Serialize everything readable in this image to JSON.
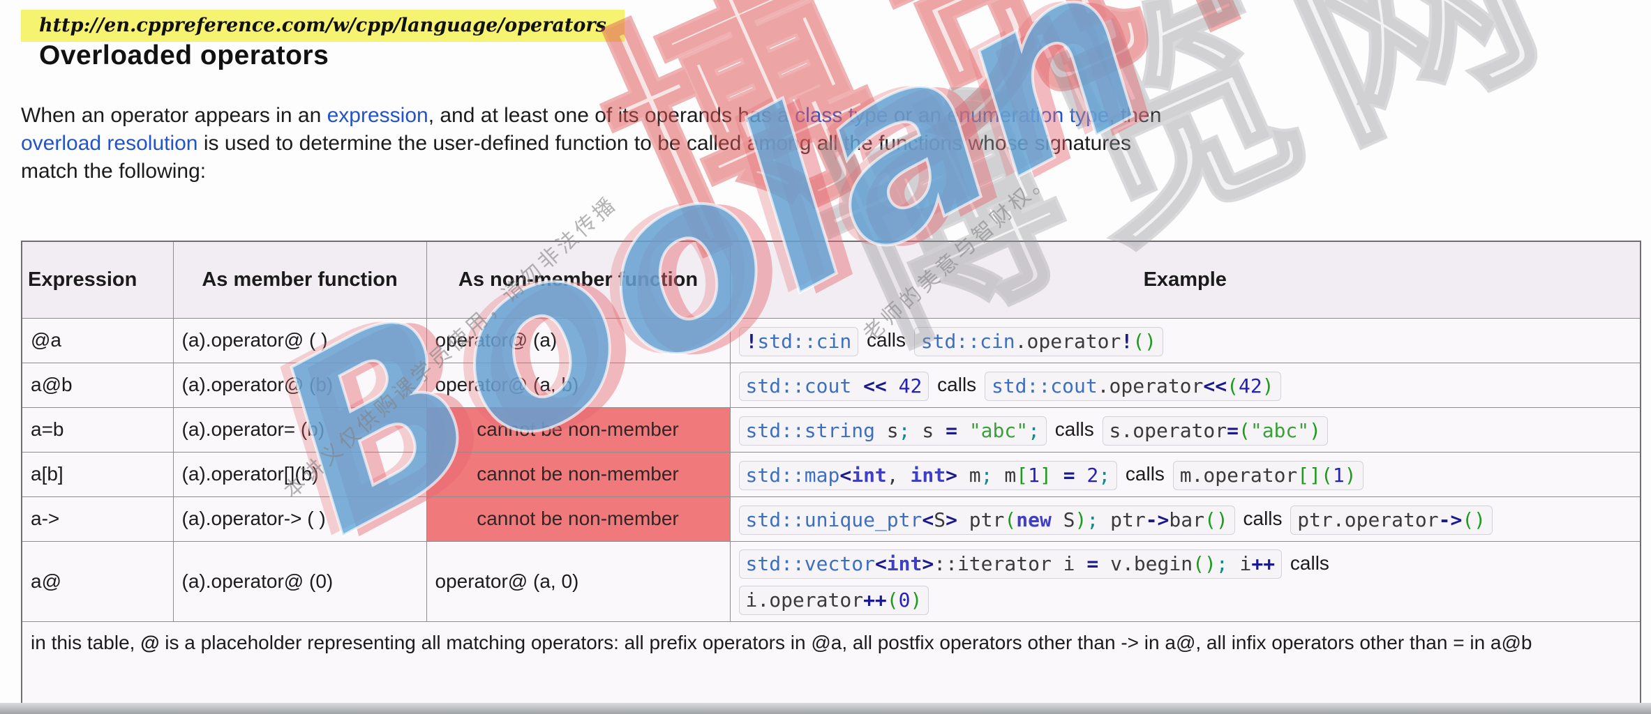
{
  "page": {
    "url": "http://en.cppreference.com/w/cpp/language/operators",
    "heading": "Overloaded operators",
    "intro_lines": [
      [
        {
          "t": "When an operator appears in an ",
          "link": false
        },
        {
          "t": "expression",
          "link": true
        },
        {
          "t": ", and at least one of its operands has a ",
          "link": false
        },
        {
          "t": "class type",
          "link": true
        },
        {
          "t": " or an ",
          "link": false
        },
        {
          "t": "enumeration type",
          "link": true
        },
        {
          "t": ", then",
          "link": false
        }
      ],
      [
        {
          "t": "overload resolution",
          "link": true
        },
        {
          "t": " is used to determine the user-defined function to be called among all the functions whose signatures",
          "link": false
        }
      ],
      [
        {
          "t": "match the following:",
          "link": false
        }
      ]
    ]
  },
  "table": {
    "headers": [
      "Expression",
      "As member function",
      "As non-member function",
      "Example"
    ],
    "rows": [
      {
        "expression": "@a",
        "member": "(a).operator@ ( )",
        "nonmember": "operator@ (a)",
        "forbidden": false,
        "tall": false,
        "example": [
          {
            "code": [
              [
                "op",
                "!"
              ],
              [
                "link",
                "std::cin"
              ]
            ]
          },
          {
            "text": " calls "
          },
          {
            "code": [
              [
                "link",
                "std::cin"
              ],
              [
                "plain",
                ".operator"
              ],
              [
                "op",
                "!"
              ],
              [
                "par",
                "()"
              ]
            ]
          }
        ]
      },
      {
        "expression": "a@b",
        "member": "(a).operator@ (b)",
        "nonmember": "operator@ (a, b)",
        "forbidden": false,
        "tall": false,
        "example": [
          {
            "code": [
              [
                "link",
                "std::cout"
              ],
              [
                "op",
                " << "
              ],
              [
                "num",
                "42"
              ]
            ]
          },
          {
            "text": " calls "
          },
          {
            "code": [
              [
                "link",
                "std::cout"
              ],
              [
                "plain",
                ".operator"
              ],
              [
                "op",
                "<<"
              ],
              [
                "par",
                "("
              ],
              [
                "num",
                "42"
              ],
              [
                "par",
                ")"
              ]
            ]
          }
        ]
      },
      {
        "expression": "a=b",
        "member": "(a).operator= (b)",
        "nonmember": "cannot be non-member",
        "forbidden": true,
        "tall": false,
        "example": [
          {
            "code": [
              [
                "link",
                "std::string"
              ],
              [
                "plain",
                " s"
              ],
              [
                "semi",
                ";"
              ],
              [
                "plain",
                " s "
              ],
              [
                "op",
                "="
              ],
              [
                "plain",
                " "
              ],
              [
                "str",
                "\"abc\""
              ],
              [
                "semi",
                ";"
              ]
            ]
          },
          {
            "text": " calls "
          },
          {
            "code": [
              [
                "plain",
                "s.operator"
              ],
              [
                "op",
                "="
              ],
              [
                "par",
                "("
              ],
              [
                "str",
                "\"abc\""
              ],
              [
                "par",
                ")"
              ]
            ]
          }
        ]
      },
      {
        "expression": "a[b]",
        "member": "(a).operator[](b)",
        "nonmember": "cannot be non-member",
        "forbidden": true,
        "tall": false,
        "example": [
          {
            "code": [
              [
                "link",
                "std::map"
              ],
              [
                "op",
                "<"
              ],
              [
                "kw",
                "int"
              ],
              [
                "plain",
                ", "
              ],
              [
                "kw",
                "int"
              ],
              [
                "op",
                ">"
              ],
              [
                "plain",
                " m"
              ],
              [
                "semi",
                ";"
              ],
              [
                "plain",
                " m"
              ],
              [
                "par",
                "["
              ],
              [
                "num",
                "1"
              ],
              [
                "par",
                "]"
              ],
              [
                "plain",
                " "
              ],
              [
                "op",
                "="
              ],
              [
                "num",
                " 2"
              ],
              [
                "semi",
                ";"
              ]
            ]
          },
          {
            "text": " calls "
          },
          {
            "code": [
              [
                "plain",
                "m.operator"
              ],
              [
                "par",
                "[]"
              ],
              [
                "par",
                "("
              ],
              [
                "num",
                "1"
              ],
              [
                "par",
                ")"
              ]
            ]
          }
        ]
      },
      {
        "expression": "a->",
        "member": "(a).operator-> ( )",
        "nonmember": "cannot be non-member",
        "forbidden": true,
        "tall": false,
        "example": [
          {
            "code": [
              [
                "link",
                "std::unique_ptr"
              ],
              [
                "op",
                "<"
              ],
              [
                "plain",
                "S"
              ],
              [
                "op",
                ">"
              ],
              [
                "plain",
                " ptr"
              ],
              [
                "par",
                "("
              ],
              [
                "kw",
                "new"
              ],
              [
                "plain",
                " S"
              ],
              [
                "par",
                ")"
              ],
              [
                "semi",
                ";"
              ],
              [
                "plain",
                " ptr"
              ],
              [
                "op",
                "->"
              ],
              [
                "plain",
                "bar"
              ],
              [
                "par",
                "()"
              ]
            ]
          },
          {
            "text": " calls "
          },
          {
            "code": [
              [
                "plain",
                "ptr.operator"
              ],
              [
                "op",
                "->"
              ],
              [
                "par",
                "()"
              ]
            ]
          }
        ]
      },
      {
        "expression": "a@",
        "member": "(a).operator@ (0)",
        "nonmember": "operator@ (a, 0)",
        "forbidden": false,
        "tall": true,
        "example": [
          {
            "code": [
              [
                "link",
                "std::vector"
              ],
              [
                "op",
                "<"
              ],
              [
                "kw",
                "int"
              ],
              [
                "op",
                ">"
              ],
              [
                "plain",
                "::iterator i "
              ],
              [
                "op",
                "="
              ],
              [
                "plain",
                " v.begin"
              ],
              [
                "par",
                "()"
              ],
              [
                "semi",
                ";"
              ],
              [
                "plain",
                " i"
              ],
              [
                "op",
                "++"
              ]
            ]
          },
          {
            "text": " calls"
          },
          {
            "break": true
          },
          {
            "code": [
              [
                "plain",
                "i.operator"
              ],
              [
                "op",
                "++"
              ],
              [
                "par",
                "("
              ],
              [
                "num",
                "0"
              ],
              [
                "par",
                ")"
              ]
            ]
          }
        ]
      }
    ],
    "footnote": {
      "pre": "in this table, ",
      "symbol": "@",
      "post": " is a placeholder representing all matching operators: all prefix operators in @a, all postfix operators other than -> in a@, all infix operators other than = in a@b"
    }
  },
  "watermark": {
    "brand": "Boolan",
    "site": "博览网",
    "notice_1": "本讲义仅供购课学员使用，请勿非法传播",
    "notice_2": "老师的美意与智财权。"
  },
  "colors": {
    "link": "#2353cc",
    "code-link": "#3d6fc0",
    "kw": "#3f3fc4",
    "num": "#2222bb",
    "op": "#1a1a8e",
    "par": "#1d9b1d",
    "str": "#3aa03a",
    "semi": "#0e8c8c",
    "forbidden-bg": "#f0797c",
    "header-bg": "#f2edf2",
    "cell-bg": "#faf8fa",
    "hl-yellow": "#f6f370"
  }
}
